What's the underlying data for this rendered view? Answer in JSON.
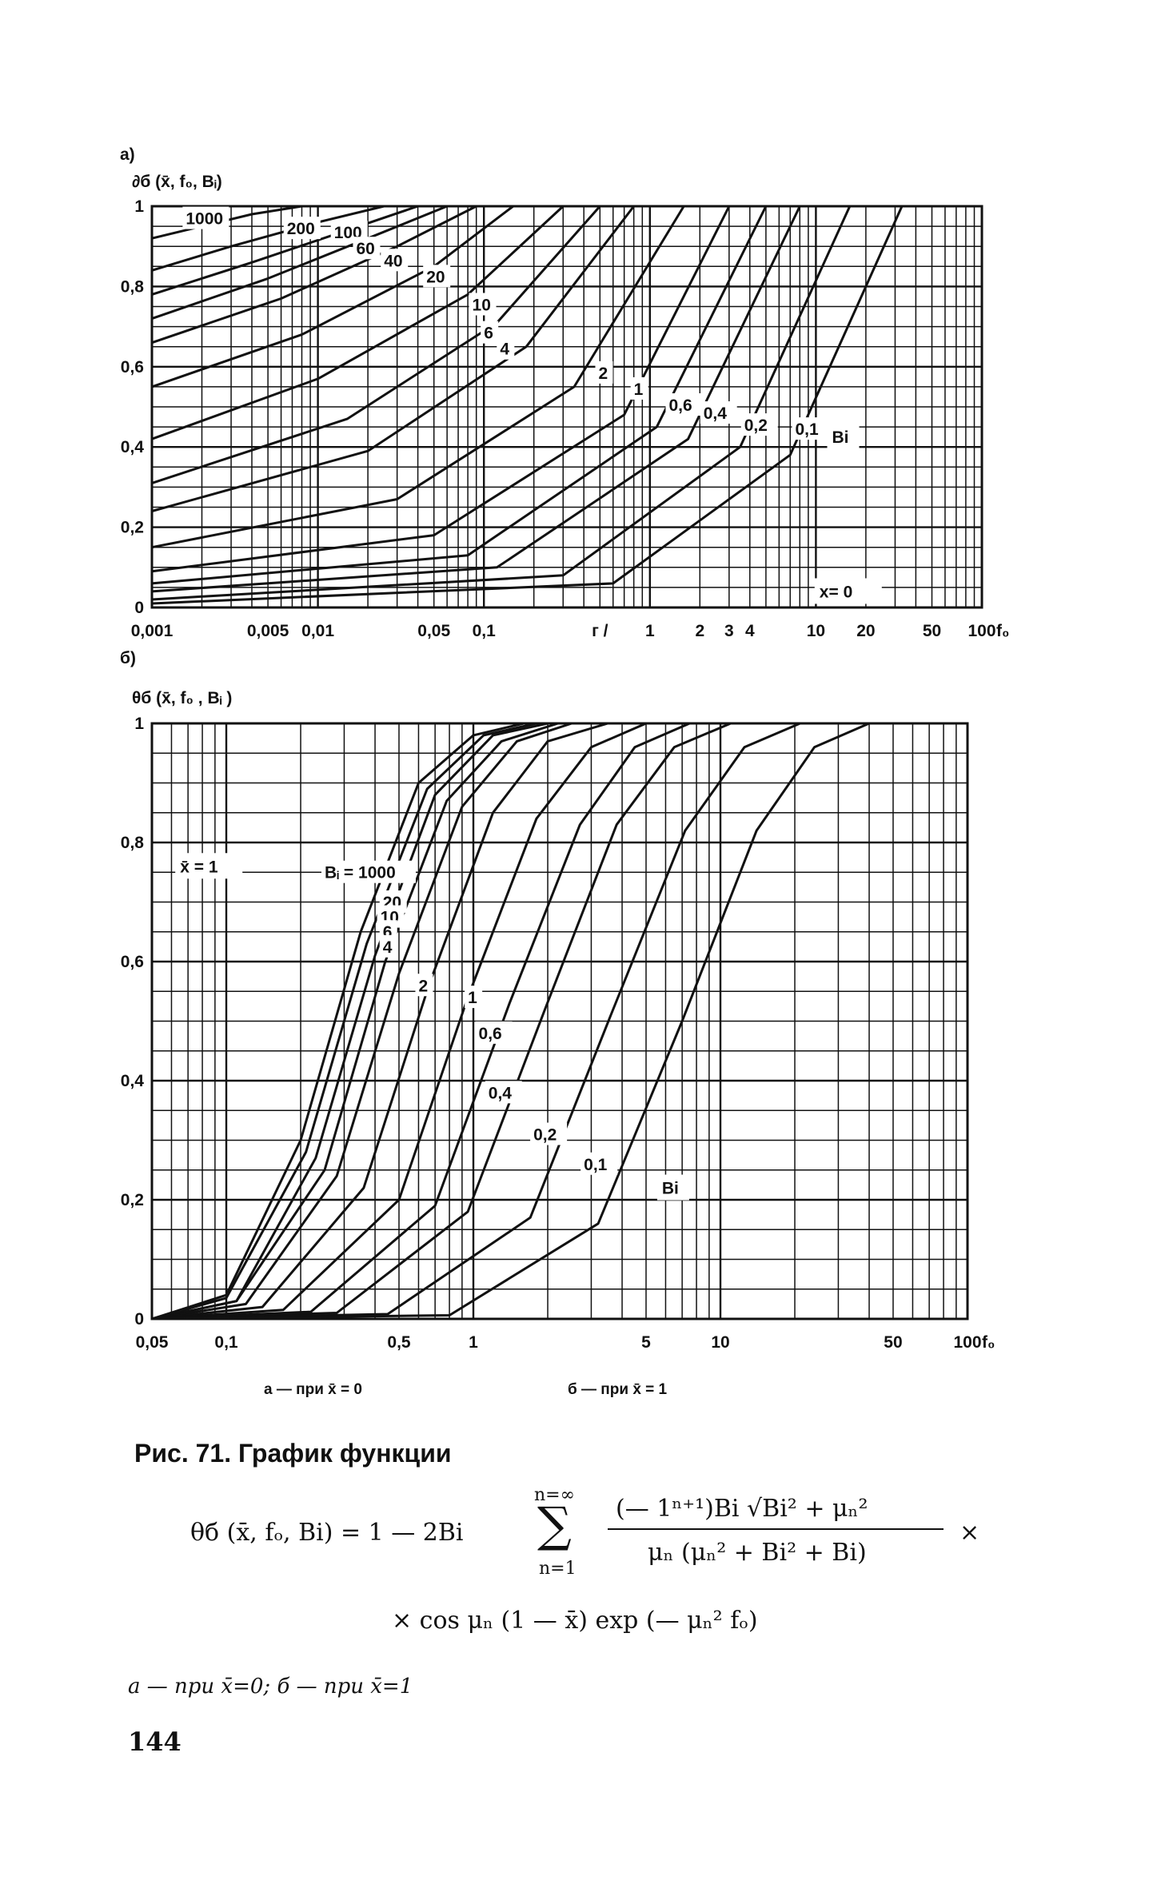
{
  "chart_data": [
    {
      "type": "line",
      "panel_label": "а)",
      "ylabel": "∂б (x̄, f₀, Bᵢ)",
      "xlabel": "f₀",
      "xscale": "log",
      "xlim": [
        0.001,
        100
      ],
      "ylim": [
        0,
        1
      ],
      "grid": true,
      "x_ticks": [
        "0,001",
        "0,005",
        "0,01",
        "0,05",
        "0,1",
        "г /",
        "1",
        "2",
        "3",
        "4",
        "10",
        "20",
        "50",
        "100"
      ],
      "x_tick_values": [
        0.001,
        0.005,
        0.01,
        0.05,
        0.1,
        0.5,
        1,
        2,
        3,
        4,
        10,
        20,
        50,
        100
      ],
      "y_ticks": [
        "0",
        "0,2",
        "0,4",
        "0,6",
        "0,8",
        "1"
      ],
      "y_tick_values": [
        0,
        0.2,
        0.4,
        0.6,
        0.8,
        1
      ],
      "legend_title": "Bi",
      "annotation": "x= 0",
      "series": [
        {
          "name": "1000",
          "x": [
            0.001,
            0.002,
            0.004,
            0.008
          ],
          "y": [
            0.92,
            0.95,
            0.98,
            1.0
          ]
        },
        {
          "name": "200",
          "x": [
            0.001,
            0.003,
            0.01,
            0.025
          ],
          "y": [
            0.84,
            0.9,
            0.96,
            1.0
          ]
        },
        {
          "name": "100",
          "x": [
            0.001,
            0.004,
            0.015,
            0.04
          ],
          "y": [
            0.78,
            0.86,
            0.94,
            1.0
          ]
        },
        {
          "name": "60",
          "x": [
            0.001,
            0.005,
            0.02,
            0.06
          ],
          "y": [
            0.72,
            0.82,
            0.92,
            1.0
          ]
        },
        {
          "name": "40",
          "x": [
            0.001,
            0.006,
            0.03,
            0.09
          ],
          "y": [
            0.66,
            0.77,
            0.9,
            1.0
          ]
        },
        {
          "name": "20",
          "x": [
            0.001,
            0.008,
            0.05,
            0.15
          ],
          "y": [
            0.55,
            0.68,
            0.85,
            1.0
          ]
        },
        {
          "name": "10",
          "x": [
            0.001,
            0.01,
            0.08,
            0.3
          ],
          "y": [
            0.42,
            0.57,
            0.78,
            1.0
          ]
        },
        {
          "name": "6",
          "x": [
            0.001,
            0.015,
            0.12,
            0.5
          ],
          "y": [
            0.31,
            0.47,
            0.71,
            1.0
          ]
        },
        {
          "name": "4",
          "x": [
            0.001,
            0.02,
            0.18,
            0.8
          ],
          "y": [
            0.24,
            0.39,
            0.65,
            1.0
          ]
        },
        {
          "name": "2",
          "x": [
            0.001,
            0.03,
            0.35,
            1.6
          ],
          "y": [
            0.15,
            0.27,
            0.55,
            1.0
          ]
        },
        {
          "name": "1",
          "x": [
            0.001,
            0.05,
            0.7,
            3.0
          ],
          "y": [
            0.09,
            0.18,
            0.48,
            1.0
          ]
        },
        {
          "name": "0,6",
          "x": [
            0.001,
            0.08,
            1.1,
            5.0
          ],
          "y": [
            0.06,
            0.13,
            0.45,
            1.0
          ]
        },
        {
          "name": "0,4",
          "x": [
            0.001,
            0.12,
            1.7,
            8.0
          ],
          "y": [
            0.04,
            0.1,
            0.42,
            1.0
          ]
        },
        {
          "name": "0,2",
          "x": [
            0.001,
            0.3,
            3.5,
            16.0
          ],
          "y": [
            0.02,
            0.08,
            0.4,
            1.0
          ]
        },
        {
          "name": "0,1",
          "x": [
            0.001,
            0.6,
            7.0,
            33.0
          ],
          "y": [
            0.01,
            0.06,
            0.38,
            1.0
          ]
        }
      ]
    },
    {
      "type": "line",
      "panel_label": "б)",
      "ylabel": "θб (x̄, f₀ , Bᵢ )",
      "xlabel": "f₀",
      "xscale": "log",
      "xlim": [
        0.05,
        100
      ],
      "ylim": [
        0,
        1
      ],
      "grid": true,
      "x_ticks": [
        "0,05",
        "0,1",
        "0,5",
        "1",
        "5",
        "10",
        "50",
        "100"
      ],
      "x_tick_values": [
        0.05,
        0.1,
        0.5,
        1,
        5,
        10,
        50,
        100
      ],
      "y_ticks": [
        "0",
        "0,2",
        "0,4",
        "0,6",
        "0,8",
        "1"
      ],
      "y_tick_values": [
        0,
        0.2,
        0.4,
        0.6,
        0.8,
        1
      ],
      "legend_title": "Bi",
      "annotation": "x̄ = 1",
      "series": [
        {
          "name": "Bᵢ = 1000",
          "x": [
            0.05,
            0.1,
            0.2,
            0.35,
            0.6,
            1.0,
            1.6
          ],
          "y": [
            0.0,
            0.04,
            0.3,
            0.65,
            0.9,
            0.98,
            1.0
          ]
        },
        {
          "name": "20",
          "x": [
            0.05,
            0.1,
            0.21,
            0.37,
            0.65,
            1.1,
            1.8
          ],
          "y": [
            0.0,
            0.035,
            0.28,
            0.63,
            0.89,
            0.98,
            1.0
          ]
        },
        {
          "name": "10",
          "x": [
            0.05,
            0.11,
            0.23,
            0.4,
            0.7,
            1.2,
            2.0
          ],
          "y": [
            0.0,
            0.03,
            0.27,
            0.61,
            0.88,
            0.98,
            1.0
          ]
        },
        {
          "name": "6",
          "x": [
            0.05,
            0.11,
            0.25,
            0.44,
            0.78,
            1.3,
            2.2
          ],
          "y": [
            0.0,
            0.03,
            0.25,
            0.6,
            0.87,
            0.97,
            1.0
          ]
        },
        {
          "name": "4",
          "x": [
            0.05,
            0.12,
            0.28,
            0.5,
            0.9,
            1.5,
            2.5
          ],
          "y": [
            0.0,
            0.025,
            0.24,
            0.58,
            0.86,
            0.97,
            1.0
          ]
        },
        {
          "name": "2",
          "x": [
            0.05,
            0.14,
            0.36,
            0.66,
            1.2,
            2.0,
            3.5
          ],
          "y": [
            0.0,
            0.02,
            0.22,
            0.56,
            0.85,
            0.97,
            1.0
          ]
        },
        {
          "name": "1",
          "x": [
            0.05,
            0.17,
            0.5,
            0.95,
            1.8,
            3.0,
            5.0
          ],
          "y": [
            0.0,
            0.015,
            0.2,
            0.54,
            0.84,
            0.96,
            1.0
          ]
        },
        {
          "name": "0,6",
          "x": [
            0.05,
            0.22,
            0.7,
            1.4,
            2.7,
            4.5,
            7.5
          ],
          "y": [
            0.0,
            0.012,
            0.19,
            0.53,
            0.83,
            0.96,
            1.0
          ]
        },
        {
          "name": "0,4",
          "x": [
            0.05,
            0.28,
            0.95,
            1.95,
            3.8,
            6.5,
            11.0
          ],
          "y": [
            0.0,
            0.01,
            0.18,
            0.52,
            0.83,
            0.96,
            1.0
          ]
        },
        {
          "name": "0,2",
          "x": [
            0.05,
            0.45,
            1.7,
            3.6,
            7.2,
            12.5,
            21.0
          ],
          "y": [
            0.0,
            0.008,
            0.17,
            0.51,
            0.82,
            0.96,
            1.0
          ]
        },
        {
          "name": "0,1",
          "x": [
            0.05,
            0.8,
            3.2,
            7.0,
            14.0,
            24.0,
            40.0
          ],
          "y": [
            0.0,
            0.006,
            0.16,
            0.5,
            0.82,
            0.96,
            1.0
          ]
        }
      ]
    }
  ],
  "subcaptions": {
    "a": "а — при   x̄ = 0",
    "b": "б — при   x̄ = 1"
  },
  "caption": {
    "title": "Рис. 71. График функции",
    "formula_lhs": "θб (x̄, fₒ, Bi) = 1 — 2Bi",
    "sum_top": "n=∞",
    "sum_bottom": "n=1",
    "numerator": "(— 1ⁿ⁺¹)Bi √Bi² + μₙ²",
    "denominator": "μₙ (μₙ² + Bi² + Bi)",
    "times": "×",
    "line2": "× cos μₙ (1 — x̄) exp (— μₙ² fₒ)",
    "note": "а — при  x̄=0;  б — при  x̄=1",
    "page_number": "144"
  }
}
